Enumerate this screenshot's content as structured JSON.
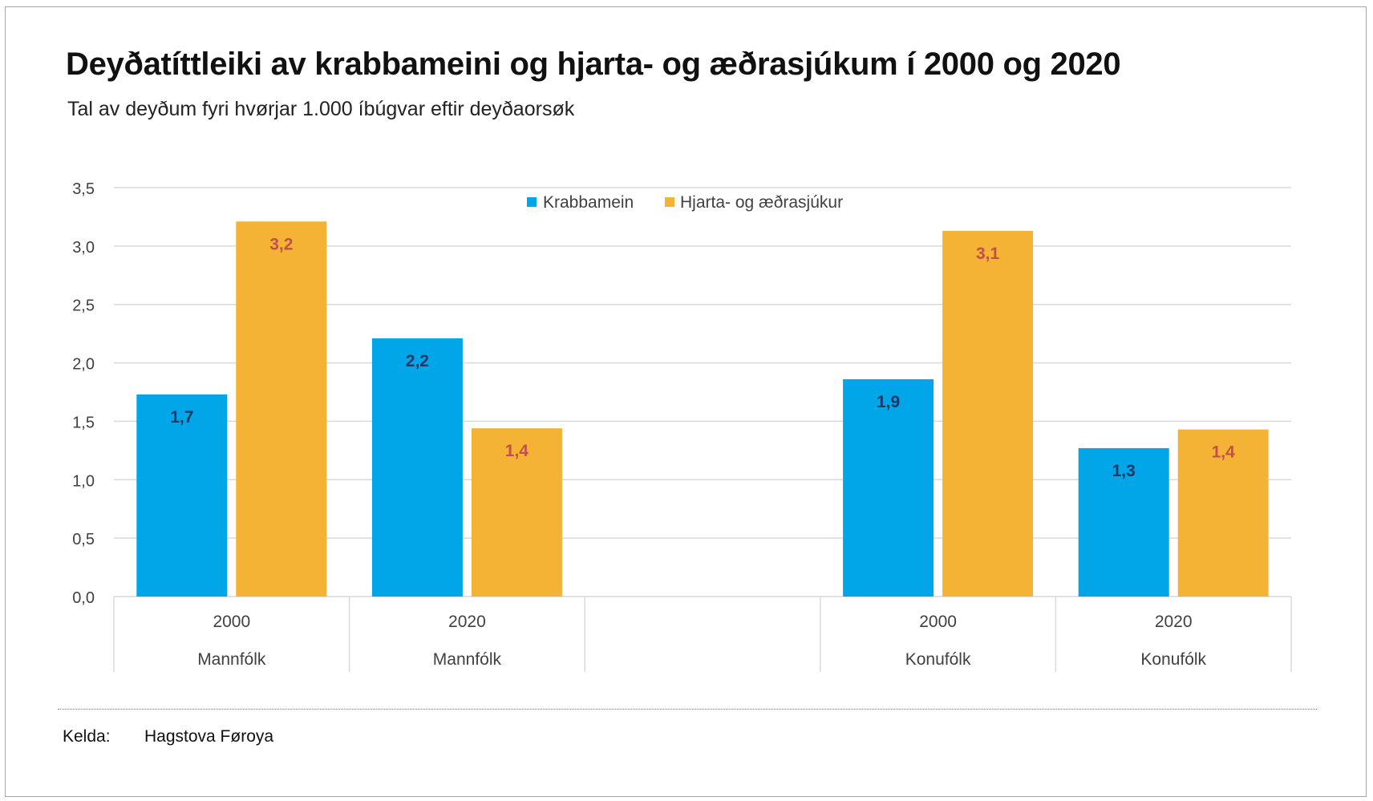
{
  "title": "Deyðatíttleiki av krabbameini og hjarta- og æðrasjúkum í 2000 og 2020",
  "subtitle": "Tal av deyðum fyri hvørjar 1.000 íbúgvar eftir deyðaorsøk",
  "source": {
    "label": "Kelda:",
    "value": "Hagstova Føroya"
  },
  "colors": {
    "Krabbamein": "#00a6e8",
    "Hjarta- og æðrasjúkur": "#f5b335",
    "label_blue": "#1f3864",
    "label_orange": "#c0504d",
    "grid": "#d9d9d9",
    "axis_text": "#404040"
  },
  "chart_data": {
    "type": "bar",
    "ylim": [
      0,
      3.5
    ],
    "yticks": [
      "0,0",
      "0,5",
      "1,0",
      "1,5",
      "2,0",
      "2,5",
      "3,0",
      "3,5"
    ],
    "categories": [
      {
        "year": "2000",
        "group": "Mannfólk"
      },
      {
        "year": "2020",
        "group": "Mannfólk"
      },
      {
        "year": "",
        "group": ""
      },
      {
        "year": "2000",
        "group": "Konufólk"
      },
      {
        "year": "2020",
        "group": "Konufólk"
      }
    ],
    "series": [
      {
        "name": "Krabbamein",
        "values": [
          1.73,
          2.21,
          null,
          1.86,
          1.27
        ],
        "labels": [
          "1,7",
          "2,2",
          "",
          "1,9",
          "1,3"
        ]
      },
      {
        "name": "Hjarta- og æðrasjúkur",
        "values": [
          3.21,
          1.44,
          null,
          3.13,
          1.43
        ],
        "labels": [
          "3,2",
          "1,4",
          "",
          "3,1",
          "1,4"
        ]
      }
    ],
    "legend": "top-center",
    "grid": true
  }
}
